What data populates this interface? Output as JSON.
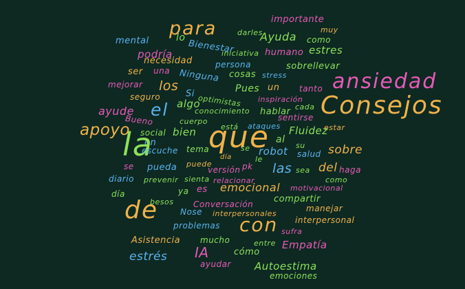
{
  "colors": {
    "background": "#0d2922",
    "green": "#8ee05a",
    "orange": "#f0b24a",
    "pink": "#e85ab8",
    "blue": "#5ab4f0",
    "purple": "#a46ef0"
  },
  "words": [
    {
      "key": "importante",
      "text": "importante",
      "color": "pink"
    },
    {
      "key": "para",
      "text": "para",
      "color": "orange"
    },
    {
      "key": "darles",
      "text": "darles",
      "color": "green"
    },
    {
      "key": "muy",
      "text": "muy",
      "color": "orange"
    },
    {
      "key": "mental",
      "text": "mental",
      "color": "blue"
    },
    {
      "key": "lo",
      "text": "lo",
      "color": "green"
    },
    {
      "key": "bienestar",
      "text": "Bienestar",
      "color": "blue"
    },
    {
      "key": "ayuda",
      "text": "Ayuda",
      "color": "green"
    },
    {
      "key": "como_top",
      "text": "como",
      "color": "green"
    },
    {
      "key": "podria",
      "text": "podría",
      "color": "pink"
    },
    {
      "key": "iniciativa",
      "text": "iniciativa",
      "color": "green"
    },
    {
      "key": "humano",
      "text": "humano",
      "color": "pink"
    },
    {
      "key": "estres",
      "text": "estres",
      "color": "green"
    },
    {
      "key": "necesidad",
      "text": "necesidad",
      "color": "orange"
    },
    {
      "key": "persona",
      "text": "persona",
      "color": "blue"
    },
    {
      "key": "sobrellevar",
      "text": "sobrellevar",
      "color": "green"
    },
    {
      "key": "ser",
      "text": "ser",
      "color": "orange"
    },
    {
      "key": "una",
      "text": "una",
      "color": "pink"
    },
    {
      "key": "ninguna",
      "text": "Ninguna",
      "color": "blue"
    },
    {
      "key": "cosas",
      "text": "cosas",
      "color": "green"
    },
    {
      "key": "stress",
      "text": "stress",
      "color": "blue"
    },
    {
      "key": "ansiedad",
      "text": "ansiedad",
      "color": "pink"
    },
    {
      "key": "mejorar",
      "text": "mejorar",
      "color": "pink"
    },
    {
      "key": "los",
      "text": "los",
      "color": "orange"
    },
    {
      "key": "si",
      "text": "Si",
      "color": "blue"
    },
    {
      "key": "pues",
      "text": "Pues",
      "color": "green"
    },
    {
      "key": "un",
      "text": "un",
      "color": "orange"
    },
    {
      "key": "tanto",
      "text": "tanto",
      "color": "pink"
    },
    {
      "key": "seguro",
      "text": "seguro",
      "color": "orange"
    },
    {
      "key": "algo",
      "text": "algo",
      "color": "green"
    },
    {
      "key": "optimistas",
      "text": "optimistas",
      "color": "green"
    },
    {
      "key": "inspiracion",
      "text": "inspiración",
      "color": "pink"
    },
    {
      "key": "ayude",
      "text": "ayude",
      "color": "pink"
    },
    {
      "key": "el",
      "text": "el",
      "color": "blue"
    },
    {
      "key": "conocimiento",
      "text": "conocimiento",
      "color": "green"
    },
    {
      "key": "hablar",
      "text": "hablar",
      "color": "green"
    },
    {
      "key": "cada",
      "text": "cada",
      "color": "green"
    },
    {
      "key": "consejos",
      "text": "Consejos",
      "color": "orange"
    },
    {
      "key": "bueno",
      "text": "Bueno",
      "color": "pink"
    },
    {
      "key": "cuerpo",
      "text": "cuerpo",
      "color": "green"
    },
    {
      "key": "sentirse",
      "text": "sentirse",
      "color": "pink"
    },
    {
      "key": "apoyo",
      "text": "apoyo",
      "color": "orange"
    },
    {
      "key": "esta",
      "text": "está",
      "color": "green"
    },
    {
      "key": "ataques",
      "text": "ataques",
      "color": "blue"
    },
    {
      "key": "estar",
      "text": "estar",
      "color": "orange"
    },
    {
      "key": "social",
      "text": "social",
      "color": "green"
    },
    {
      "key": "bien",
      "text": "bien",
      "color": "green"
    },
    {
      "key": "fluidez",
      "text": "Fluidez",
      "color": "green"
    },
    {
      "key": "en",
      "text": "en",
      "color": "blue"
    },
    {
      "key": "que",
      "text": "que",
      "color": "orange"
    },
    {
      "key": "al",
      "text": "al",
      "color": "green"
    },
    {
      "key": "la",
      "text": "la",
      "color": "green"
    },
    {
      "key": "escuche",
      "text": "escuche",
      "color": "blue"
    },
    {
      "key": "tema",
      "text": "tema",
      "color": "green"
    },
    {
      "key": "se",
      "text": "se",
      "color": "green"
    },
    {
      "key": "robot",
      "text": "robot",
      "color": "blue"
    },
    {
      "key": "su",
      "text": "su",
      "color": "green"
    },
    {
      "key": "salud",
      "text": "salud",
      "color": "blue"
    },
    {
      "key": "sobre",
      "text": "sobre",
      "color": "orange"
    },
    {
      "key": "dia_mid",
      "text": "día",
      "color": "orange"
    },
    {
      "key": "le",
      "text": "le",
      "color": "green"
    },
    {
      "key": "se_pink",
      "text": "se",
      "color": "pink"
    },
    {
      "key": "pueda",
      "text": "pueda",
      "color": "blue"
    },
    {
      "key": "puede",
      "text": "puede",
      "color": "orange"
    },
    {
      "key": "version",
      "text": "versión",
      "color": "pink"
    },
    {
      "key": "pk",
      "text": "pk",
      "color": "pink"
    },
    {
      "key": "las",
      "text": "las",
      "color": "blue"
    },
    {
      "key": "sea",
      "text": "sea",
      "color": "green"
    },
    {
      "key": "del",
      "text": "del",
      "color": "orange"
    },
    {
      "key": "haga",
      "text": "haga",
      "color": "pink"
    },
    {
      "key": "diario",
      "text": "diario",
      "color": "blue"
    },
    {
      "key": "prevenir",
      "text": "prevenir",
      "color": "green"
    },
    {
      "key": "sienta",
      "text": "sienta",
      "color": "green"
    },
    {
      "key": "relacionar",
      "text": "relacionar",
      "color": "pink"
    },
    {
      "key": "como_right",
      "text": "como",
      "color": "green"
    },
    {
      "key": "ya",
      "text": "ya",
      "color": "green"
    },
    {
      "key": "es",
      "text": "es",
      "color": "pink"
    },
    {
      "key": "emocional",
      "text": "emocional",
      "color": "orange"
    },
    {
      "key": "motivacional",
      "text": "motivacional",
      "color": "pink"
    },
    {
      "key": "dia_left",
      "text": "día",
      "color": "green"
    },
    {
      "key": "compartir",
      "text": "compartir",
      "color": "green"
    },
    {
      "key": "besos",
      "text": "besos",
      "color": "green"
    },
    {
      "key": "de",
      "text": "de",
      "color": "orange"
    },
    {
      "key": "conversacion",
      "text": "Conversación",
      "color": "pink"
    },
    {
      "key": "manejar",
      "text": "manejar",
      "color": "orange"
    },
    {
      "key": "nose",
      "text": "Nose",
      "color": "blue"
    },
    {
      "key": "interpersonales",
      "text": "interpersonales",
      "color": "orange"
    },
    {
      "key": "interpersonal",
      "text": "interpersonal",
      "color": "orange"
    },
    {
      "key": "problemas",
      "text": "problemas",
      "color": "blue"
    },
    {
      "key": "con",
      "text": "con",
      "color": "orange"
    },
    {
      "key": "sufra",
      "text": "sufra",
      "color": "pink"
    },
    {
      "key": "asistencia",
      "text": "Asistencia",
      "color": "orange"
    },
    {
      "key": "mucho",
      "text": "mucho",
      "color": "green"
    },
    {
      "key": "entre",
      "text": "entre",
      "color": "green"
    },
    {
      "key": "empatia",
      "text": "Empatía",
      "color": "pink"
    },
    {
      "key": "estres_blue",
      "text": "estrés",
      "color": "blue"
    },
    {
      "key": "ia",
      "text": "IA",
      "color": "pink"
    },
    {
      "key": "como_bottom",
      "text": "cómo",
      "color": "green"
    },
    {
      "key": "ayudar",
      "text": "ayudar",
      "color": "pink"
    },
    {
      "key": "autoestima",
      "text": "Autoestima",
      "color": "green"
    },
    {
      "key": "emociones",
      "text": "emociones",
      "color": "green"
    }
  ]
}
